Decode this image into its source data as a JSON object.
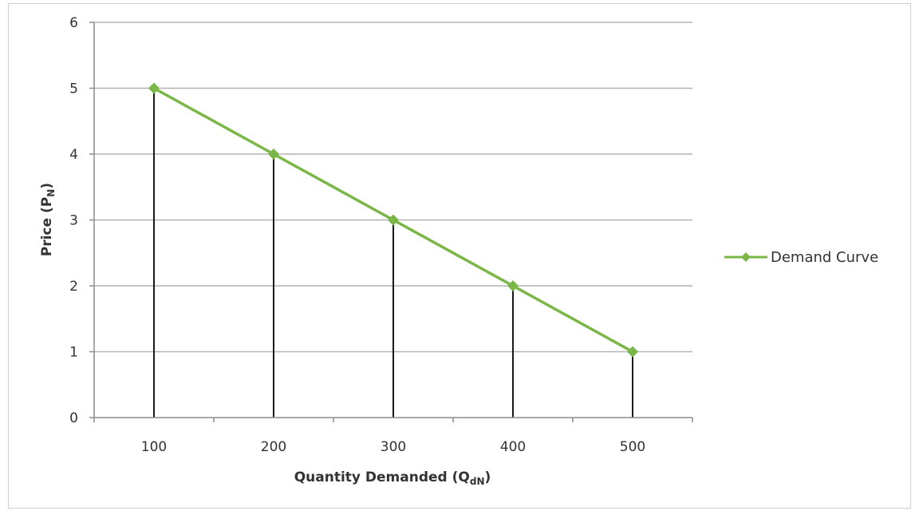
{
  "chart_data": {
    "type": "line",
    "title": "",
    "xlabel": "Quantity Demanded (Q",
    "xlabel_sub": "dN",
    "xlabel_end": ")",
    "ylabel": "Price (P",
    "ylabel_sub": "N",
    "ylabel_end": ")",
    "categories": [
      "100",
      "200",
      "300",
      "400",
      "500"
    ],
    "ylim": [
      0,
      6
    ],
    "yticks": [
      0,
      1,
      2,
      3,
      4,
      5,
      6
    ],
    "grid": true,
    "legend": "right",
    "series": [
      {
        "name": "Demand Curve",
        "color": "#7ab648",
        "values": [
          5,
          4,
          3,
          2,
          1
        ]
      }
    ],
    "droplines": true
  }
}
